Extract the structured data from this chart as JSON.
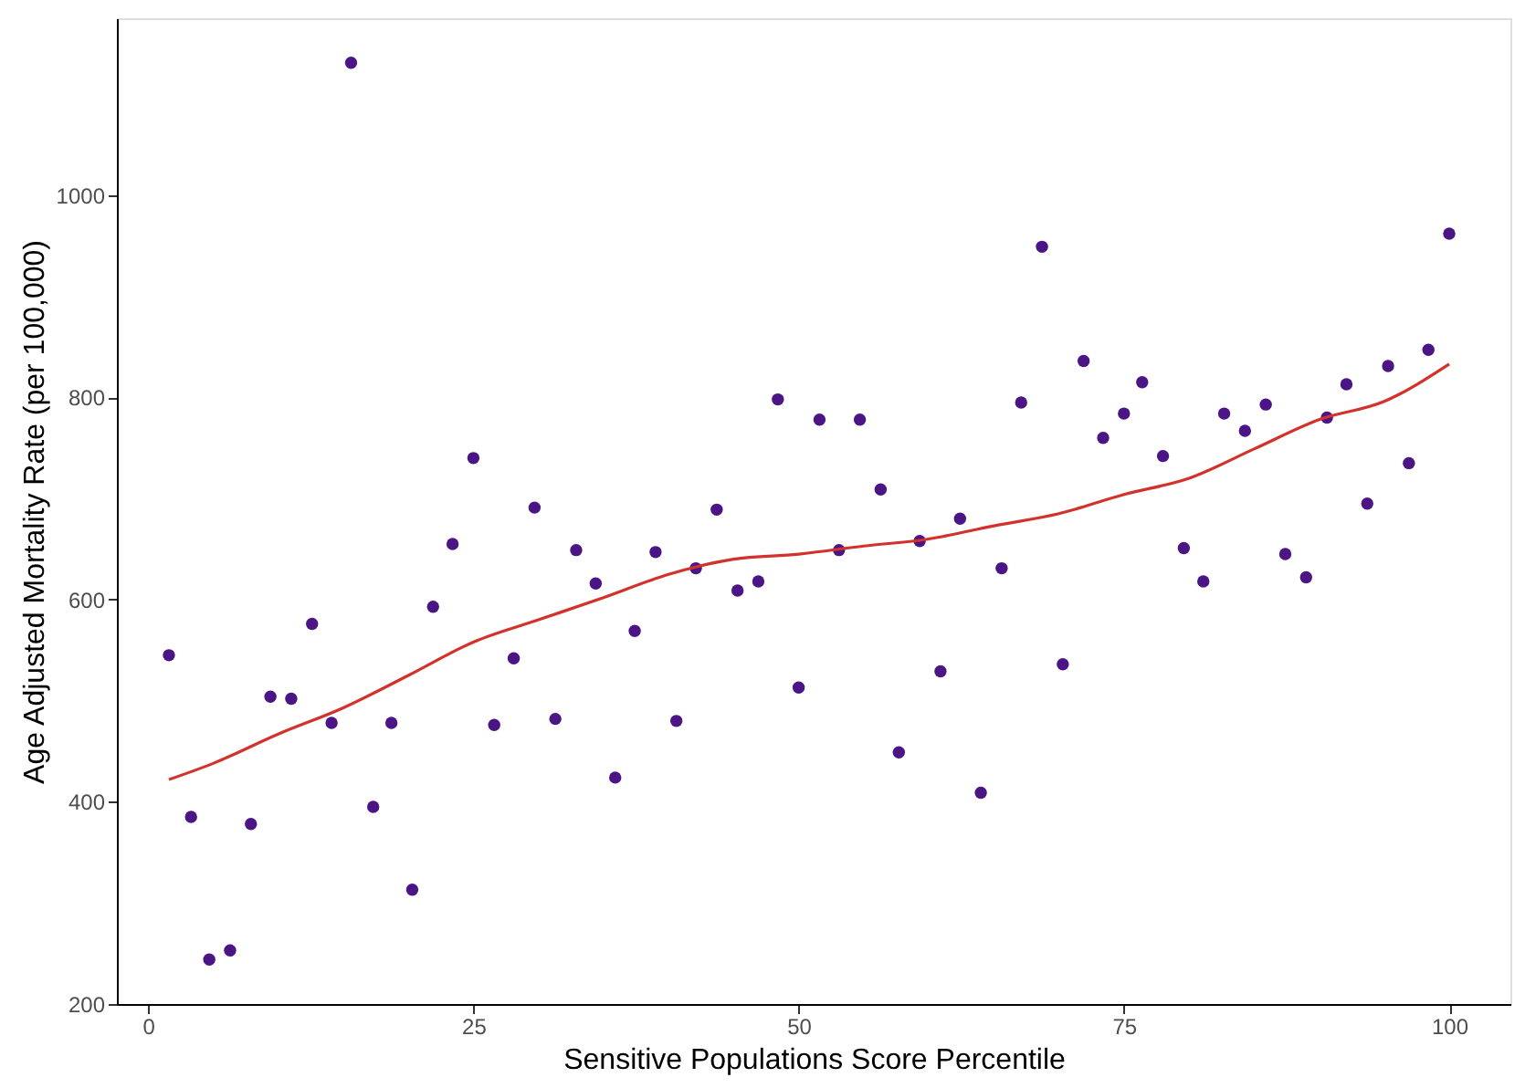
{
  "chart_data": {
    "type": "scatter",
    "xlabel": "Sensitive Populations Score Percentile",
    "ylabel": "Age Adjusted Mortality Rate (per 100,000)",
    "xlim": [
      -2.4,
      104.7
    ],
    "ylim": [
      200,
      1175
    ],
    "xticks": [
      0,
      25,
      50,
      75,
      100
    ],
    "yticks": [
      200,
      400,
      600,
      800,
      1000
    ],
    "grid": false,
    "series": [
      {
        "marker": "circle",
        "color": "#4b1585",
        "x": [
          1.6,
          3.3,
          4.7,
          6.3,
          7.9,
          9.4,
          11,
          12.6,
          14.1,
          15.6,
          17.3,
          18.7,
          20.3,
          21.9,
          23.4,
          25,
          26.6,
          28.1,
          29.7,
          31.3,
          32.9,
          34.4,
          35.9,
          37.4,
          39,
          40.6,
          42.1,
          43.7,
          45.3,
          46.9,
          48.4,
          50,
          51.6,
          53.1,
          54.7,
          56.3,
          57.7,
          59.3,
          60.9,
          62.4,
          64,
          65.6,
          67.1,
          68.7,
          70.3,
          71.9,
          73.4,
          75,
          76.4,
          78,
          79.6,
          81.1,
          82.7,
          84.3,
          85.9,
          87.4,
          89,
          90.6,
          92.1,
          93.7,
          95.3,
          96.9,
          98.4,
          100
        ],
        "values": [
          545,
          385,
          244,
          253,
          378,
          504,
          502,
          576,
          478,
          1131,
          395,
          478,
          313,
          593,
          655,
          740,
          476,
          542,
          691,
          482,
          649,
          616,
          424,
          569,
          647,
          480,
          631,
          689,
          609,
          618,
          798,
          513,
          778,
          649,
          778,
          709,
          449,
          658,
          529,
          680,
          409,
          631,
          795,
          949,
          536,
          836,
          760,
          784,
          815,
          742,
          651,
          618,
          784,
          767,
          793,
          645,
          622,
          780,
          813,
          695,
          831,
          735,
          847,
          962
        ]
      },
      {
        "type": "line",
        "color": "#d2322b",
        "line_style": "solid",
        "marker": "none",
        "x": [
          1.6,
          5,
          10,
          15,
          20,
          25,
          30,
          35,
          40,
          45,
          50,
          55,
          60,
          65,
          70,
          75,
          80,
          85,
          90,
          95,
          100
        ],
        "values": [
          422,
          438,
          467,
          493,
          525,
          558,
          580,
          602,
          625,
          640,
          645,
          653,
          660,
          673,
          685,
          704,
          720,
          749,
          778,
          796,
          833
        ]
      }
    ]
  }
}
